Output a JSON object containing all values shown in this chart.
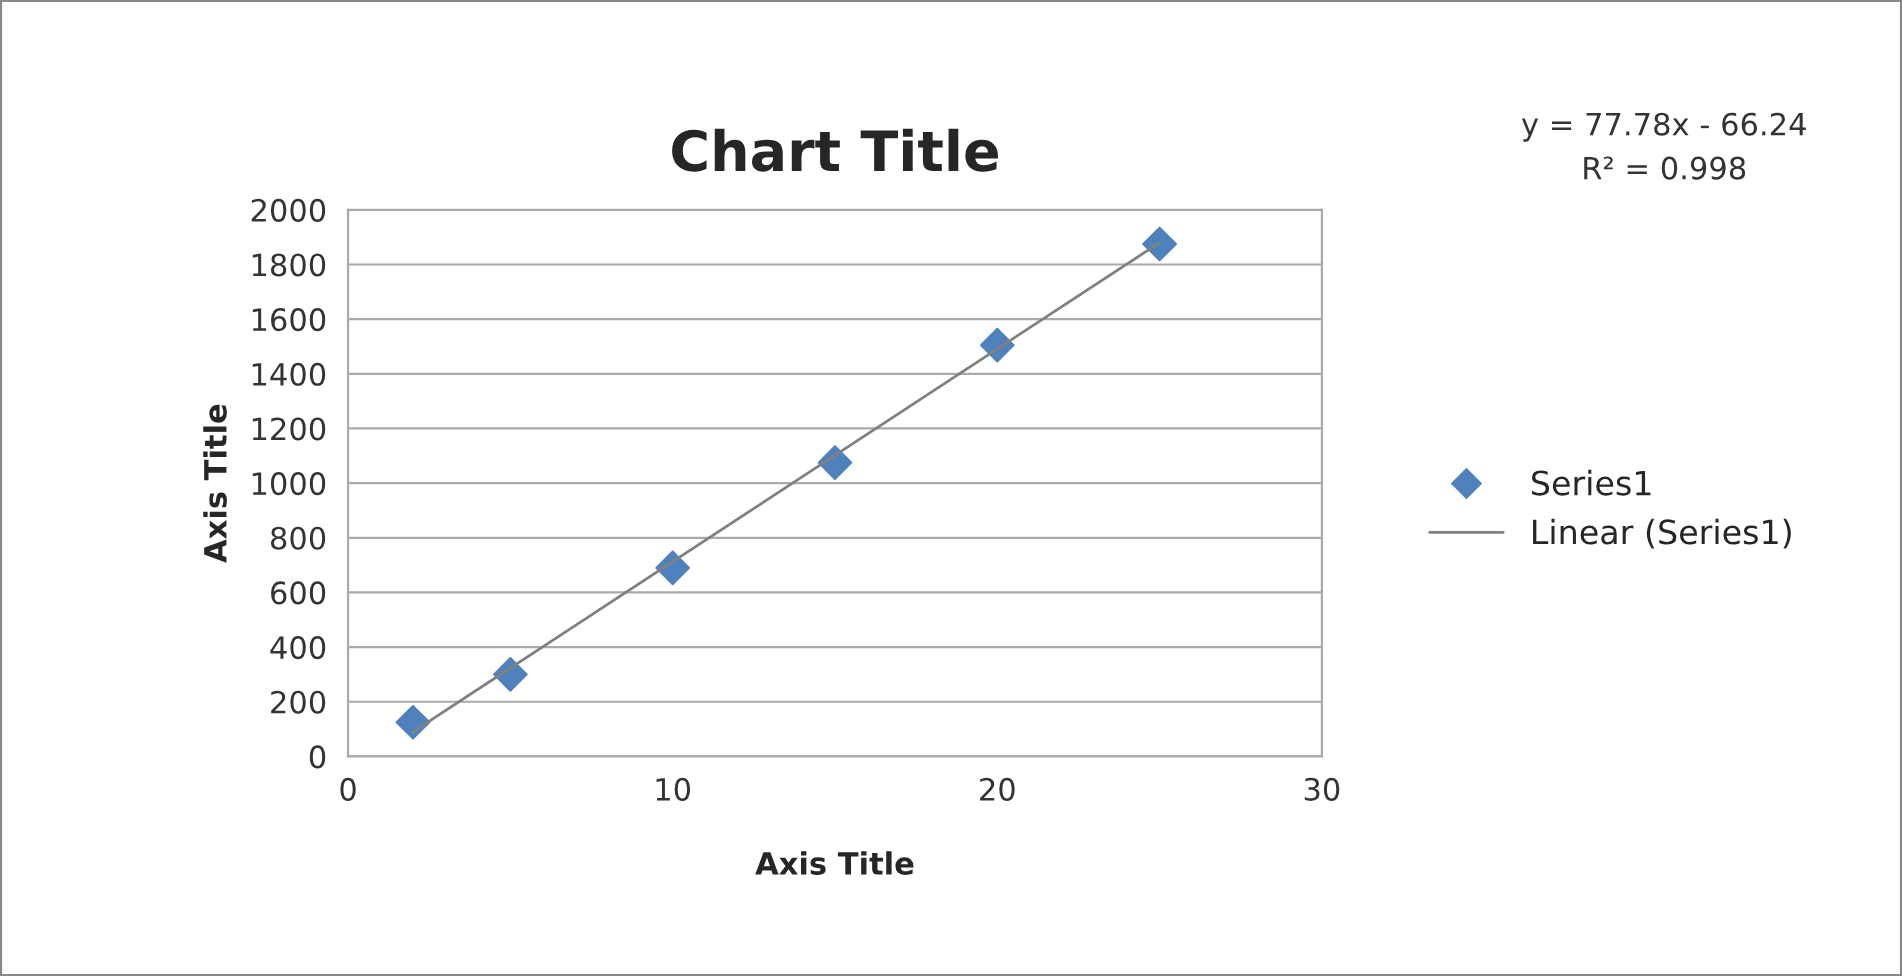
{
  "chart_data": {
    "type": "scatter",
    "title": "Chart Title",
    "xlabel": "Axis Title",
    "ylabel": "Axis Title",
    "annotations": [
      "y = 77.78x - 66.24",
      "R² = 0.998"
    ],
    "series": [
      {
        "name": "Series1",
        "color": "#4f81bd",
        "marker": "diamond",
        "x": [
          2,
          5,
          10,
          15,
          20,
          25
        ],
        "values": [
          125,
          300,
          690,
          1075,
          1505,
          1875
        ]
      },
      {
        "name": "Linear (Series1)",
        "type": "line",
        "color": "#808080",
        "line_style": "solid",
        "x": [
          2,
          25
        ],
        "values": [
          90,
          1880
        ]
      }
    ],
    "xlim": [
      0,
      30
    ],
    "xticks": [
      0,
      10,
      20,
      30
    ],
    "ylim": [
      0,
      2000
    ],
    "yticks": [
      0,
      200,
      400,
      600,
      800,
      1000,
      1200,
      1400,
      1600,
      1800,
      2000
    ],
    "grid": "y",
    "legend": "right"
  }
}
